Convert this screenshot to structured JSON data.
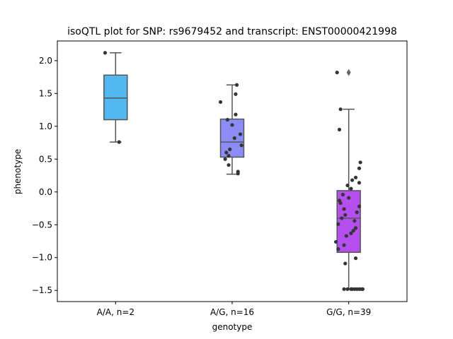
{
  "chart_data": {
    "type": "box",
    "title": "isoQTL plot for SNP: rs9679452 and transcript: ENST00000421998",
    "xlabel": "genotype",
    "ylabel": "phenotype",
    "ylim": [
      -1.67,
      2.3
    ],
    "yticks": [
      2.0,
      1.5,
      1.0,
      0.5,
      0.0,
      -0.5,
      -1.0,
      -1.5
    ],
    "ytick_labels": [
      "2.0",
      "1.5",
      "1.0",
      "0.5",
      "0.0",
      "−0.5",
      "−1.0",
      "−1.5"
    ],
    "categories": [
      "A/A, n=2",
      "A/G, n=16",
      "G/G, n=39"
    ],
    "boxes": [
      {
        "color": "#52b8f0",
        "q1": 1.1,
        "median": 1.43,
        "q3": 1.78,
        "whisker_low": 0.76,
        "whisker_high": 2.12,
        "outliers": []
      },
      {
        "color": "#8c8cf7",
        "q1": 0.53,
        "median": 0.76,
        "q3": 1.11,
        "whisker_low": 0.27,
        "whisker_high": 1.63,
        "outliers": []
      },
      {
        "color": "#b54ff0",
        "q1": -0.92,
        "median": -0.4,
        "q3": 0.02,
        "whisker_low": -1.48,
        "whisker_high": 1.26,
        "outliers": [
          1.82
        ]
      }
    ],
    "points": [
      [
        [
          -0.09,
          2.12
        ],
        [
          0.03,
          0.76
        ]
      ],
      [
        [
          -0.1,
          1.37
        ],
        [
          0.04,
          1.63
        ],
        [
          0.03,
          1.49
        ],
        [
          0.03,
          1.18
        ],
        [
          0.0,
          1.02
        ],
        [
          -0.04,
          1.1
        ],
        [
          0.07,
          0.88
        ],
        [
          0.02,
          0.82
        ],
        [
          0.08,
          0.71
        ],
        [
          -0.02,
          0.65
        ],
        [
          -0.05,
          0.6
        ],
        [
          -0.03,
          0.55
        ],
        [
          -0.06,
          0.5
        ],
        [
          -0.03,
          0.41
        ],
        [
          0.05,
          0.31
        ],
        [
          0.05,
          0.28
        ]
      ],
      [
        [
          -0.1,
          1.82
        ],
        [
          -0.07,
          1.26
        ],
        [
          -0.08,
          0.95
        ],
        [
          0.1,
          0.45
        ],
        [
          0.09,
          0.36
        ],
        [
          0.06,
          0.22
        ],
        [
          0.03,
          0.18
        ],
        [
          0.09,
          0.14
        ],
        [
          -0.01,
          0.1
        ],
        [
          0.02,
          0.05
        ],
        [
          -0.05,
          -0.04
        ],
        [
          0.0,
          -0.09
        ],
        [
          -0.08,
          -0.13
        ],
        [
          -0.07,
          -0.17
        ],
        [
          0.09,
          -0.22
        ],
        [
          -0.04,
          -0.26
        ],
        [
          0.07,
          -0.31
        ],
        [
          -0.03,
          -0.35
        ],
        [
          -0.06,
          -0.4
        ],
        [
          0.05,
          -0.44
        ],
        [
          -0.09,
          -0.49
        ],
        [
          0.06,
          -0.55
        ],
        [
          0.04,
          -0.59
        ],
        [
          0.02,
          -0.63
        ],
        [
          -0.02,
          -0.67
        ],
        [
          -0.11,
          -0.76
        ],
        [
          -0.04,
          -0.81
        ],
        [
          -0.09,
          -0.87
        ],
        [
          0.06,
          -1.01
        ],
        [
          -0.03,
          -1.09
        ],
        [
          -0.04,
          -1.48
        ],
        [
          -0.01,
          -1.48
        ],
        [
          0.02,
          -1.48
        ],
        [
          0.05,
          -1.48
        ],
        [
          0.07,
          -1.48
        ],
        [
          0.09,
          -1.48
        ],
        [
          0.11,
          -1.48
        ],
        [
          0.12,
          -1.48
        ],
        [
          0.03,
          -1.48
        ]
      ]
    ],
    "colors": {
      "box_edge": "#555555",
      "point": "#353535",
      "outlier": "#666666"
    }
  }
}
